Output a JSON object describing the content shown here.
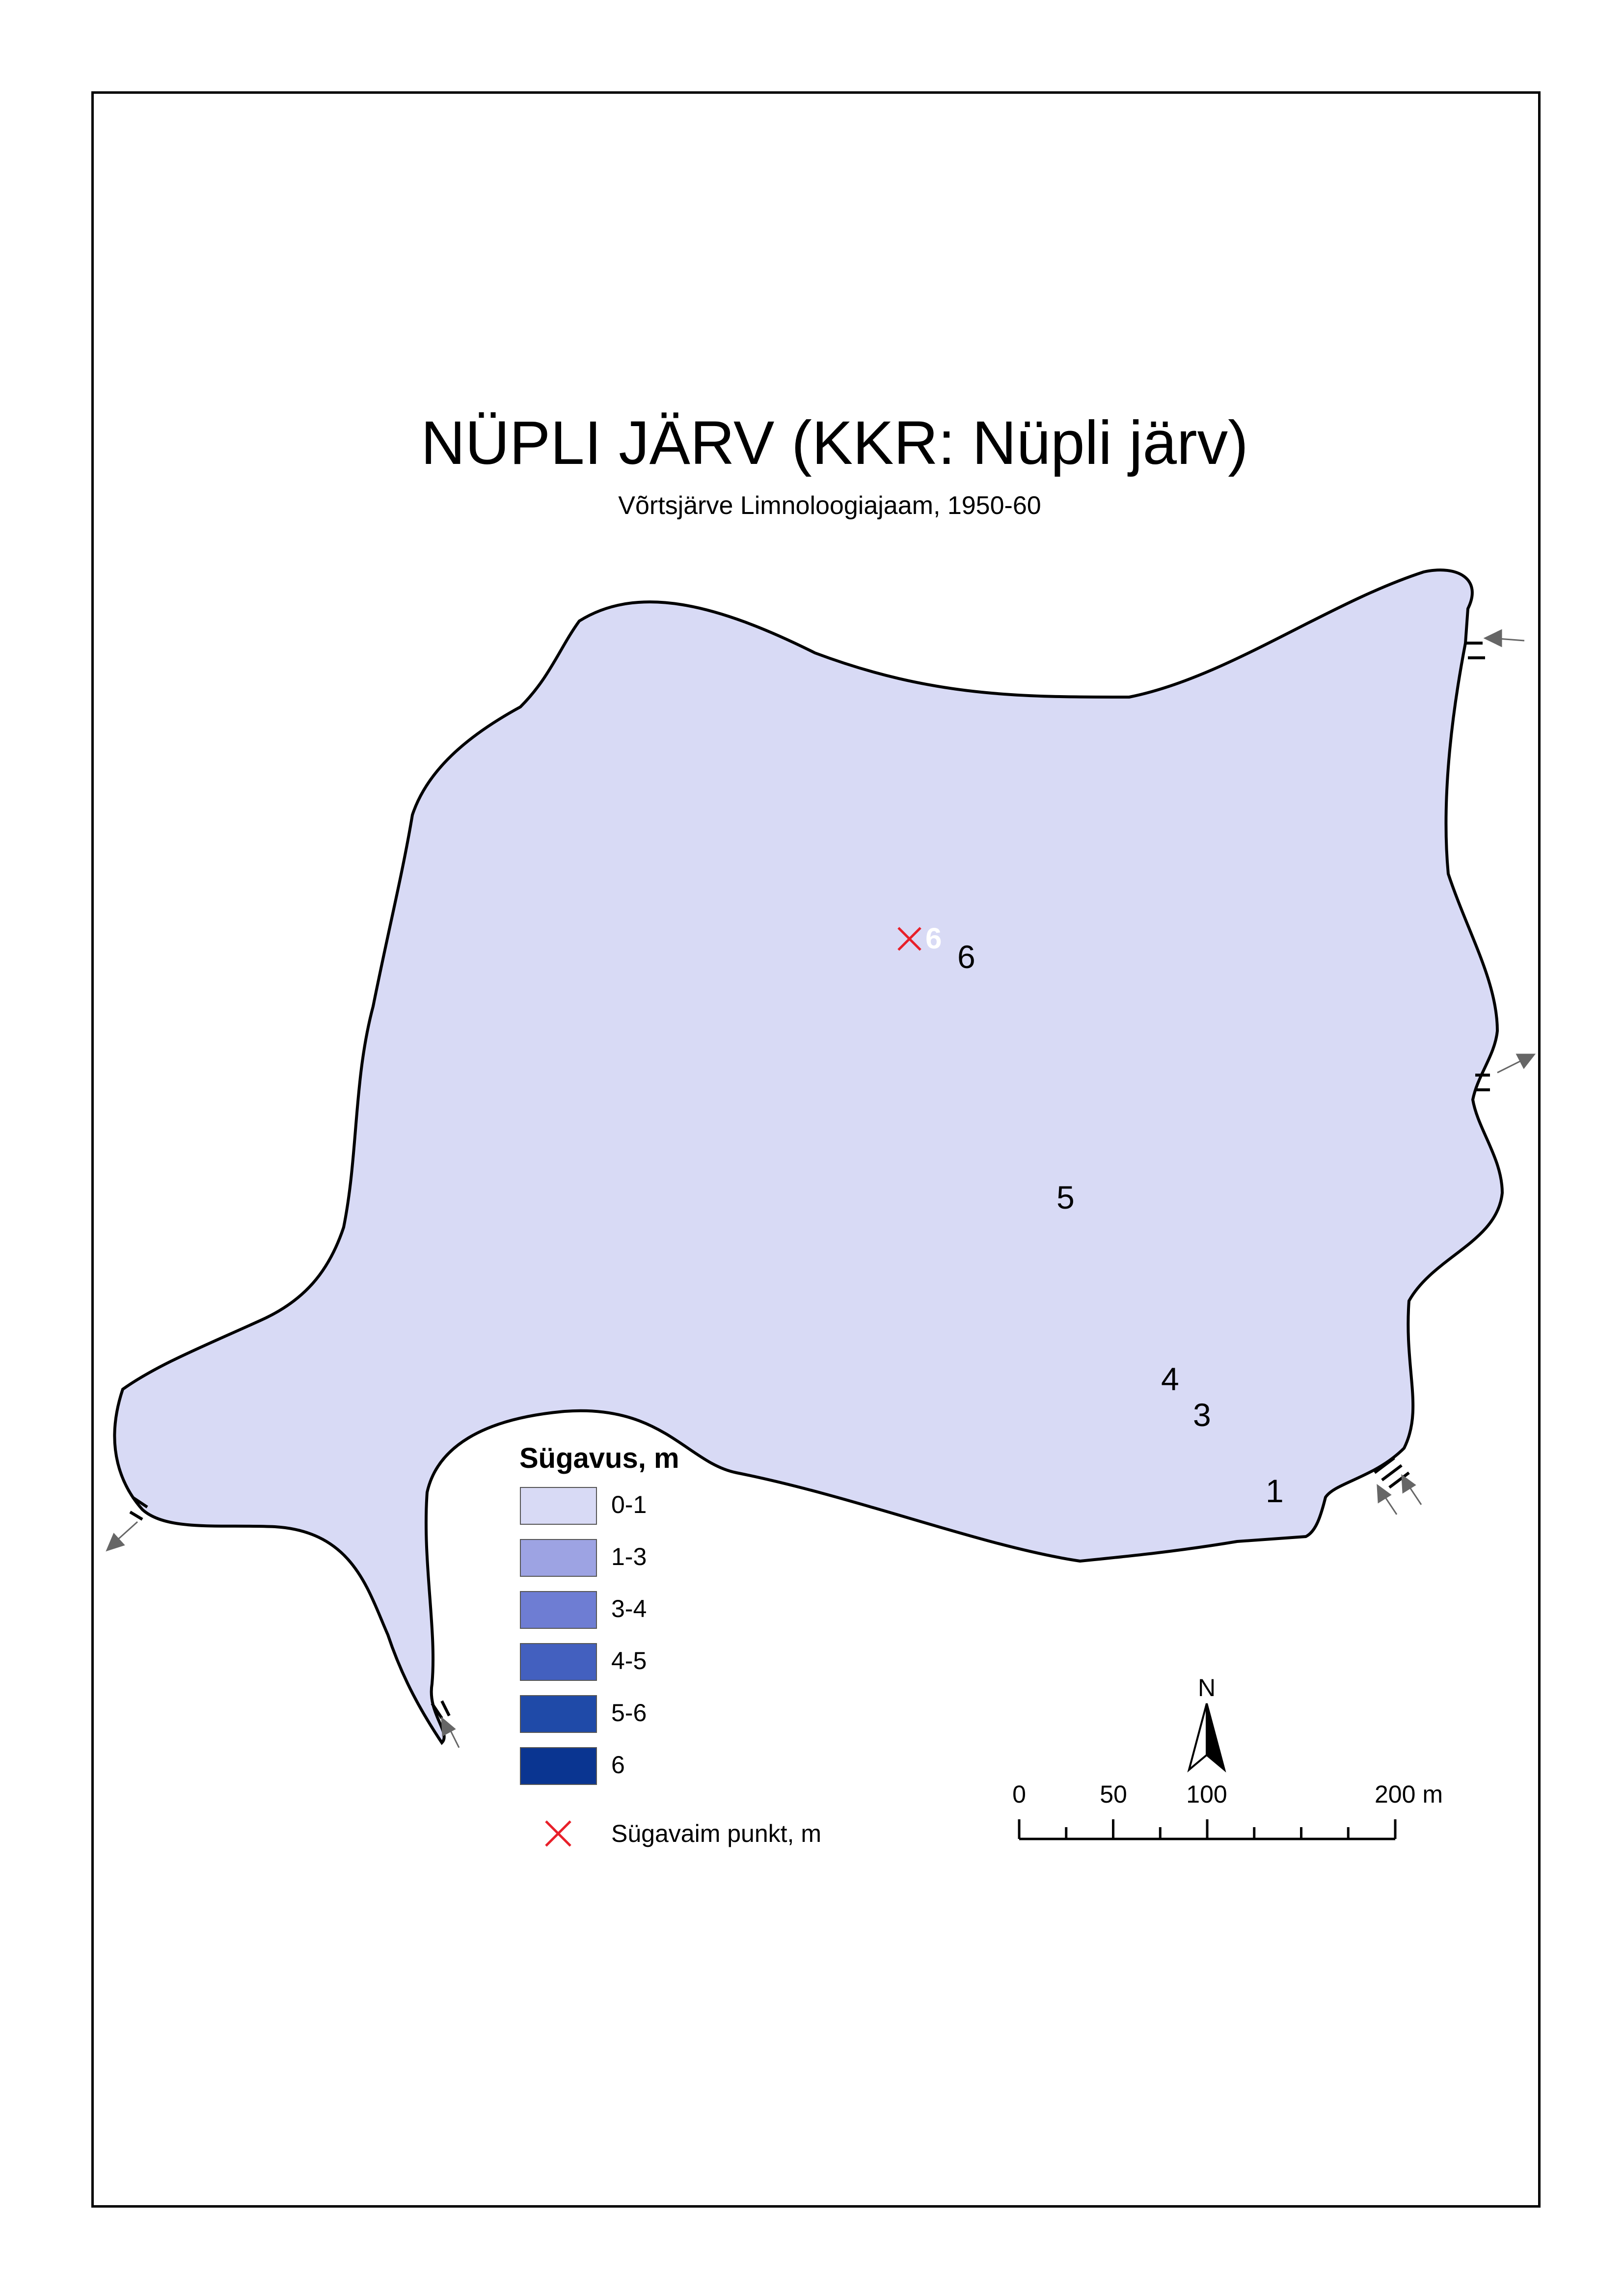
{
  "title": "NÜPLI JÄRV (KKR: Nüpli järv)",
  "subtitle": "Võrtsjärve Limnoloogiajaam, 1950-60",
  "legend": {
    "title": "Sügavus, m",
    "items": [
      {
        "label": "0-1",
        "color": "#d8daf5"
      },
      {
        "label": "1-3",
        "color": "#9da3e3"
      },
      {
        "label": "3-4",
        "color": "#6e7dd3"
      },
      {
        "label": "4-5",
        "color": "#4360bf"
      },
      {
        "label": "5-6",
        "color": "#1f4aa8"
      },
      {
        "label": "6",
        "color": "#0a3591"
      }
    ],
    "deepest_point_label": "Sügavaim punkt, m"
  },
  "deepest_point": {
    "value": "6",
    "marker_color": "#e8202a"
  },
  "contour_labels": [
    "6",
    "5",
    "4",
    "3",
    "1"
  ],
  "north_arrow": {
    "label": "N"
  },
  "scale_bar": {
    "ticks": [
      "0",
      "50",
      "100",
      "200 m"
    ]
  },
  "colors": {
    "shoreline": "#000000",
    "arrow": "#666666"
  }
}
